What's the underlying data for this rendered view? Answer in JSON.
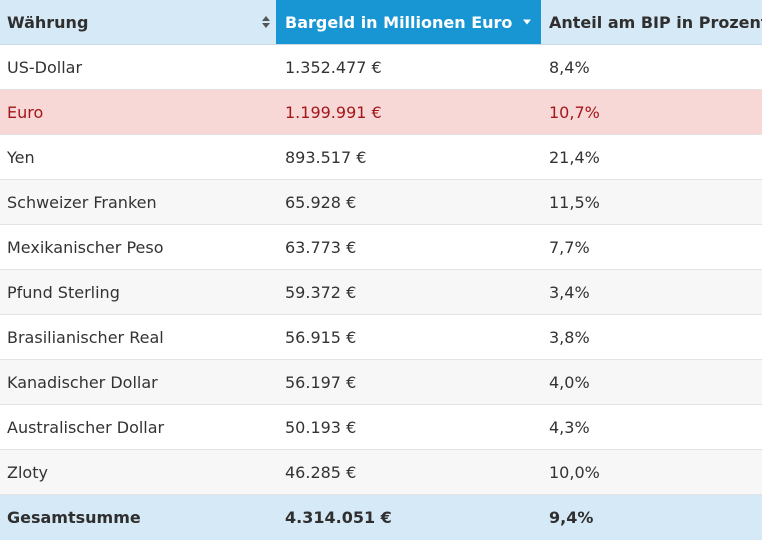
{
  "table": {
    "headers": [
      "Währung",
      "Bargeld in Millionen Euro",
      "Anteil am BIP in Prozent"
    ],
    "rows": [
      [
        "US-Dollar",
        "1.352.477 €",
        "8,4%"
      ],
      [
        "Euro",
        "1.199.991 €",
        "10,7%"
      ],
      [
        "Yen",
        "893.517 €",
        "21,4%"
      ],
      [
        "Schweizer Franken",
        "65.928 €",
        "11,5%"
      ],
      [
        "Mexikanischer Peso",
        "63.773 €",
        "7,7%"
      ],
      [
        "Pfund Sterling",
        "59.372 €",
        "3,4%"
      ],
      [
        "Brasilianischer Real",
        "56.915 €",
        "3,8%"
      ],
      [
        "Kanadischer Dollar",
        "56.197 €",
        "4,0%"
      ],
      [
        "Australischer Dollar",
        "50.193 €",
        "4,3%"
      ],
      [
        "Zloty",
        "46.285 €",
        "10,0%"
      ]
    ],
    "total": [
      "Gesamtsumme",
      "4.314.051 €",
      "9,4%"
    ],
    "highlighted_row": "Euro",
    "sorted_column": "Bargeld in Millionen Euro",
    "sort_direction": "descending"
  },
  "colors": {
    "header_bg": "#d5e9f6",
    "sorted_header_bg": "#1896d4",
    "highlight_bg": "#f8d7d7",
    "highlight_text": "#a3171a",
    "total_bg": "#d5e9f6"
  },
  "icons": {
    "sort_both": "sort-both-icon",
    "sort_desc": "sort-desc-icon"
  }
}
